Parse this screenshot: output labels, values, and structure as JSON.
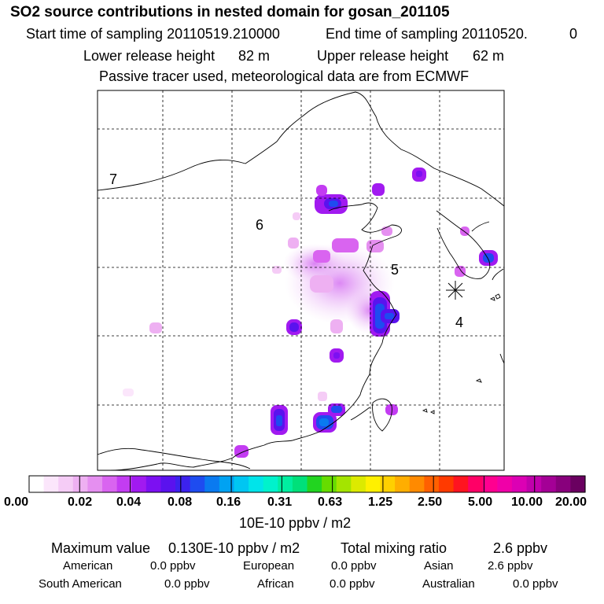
{
  "header": {
    "title": "SO2 source contributions in nested domain for gosan_201105",
    "start_label": "Start time of sampling 20110519.210000",
    "end_label": "End time of sampling 20110520.",
    "end_suffix": "0",
    "lower_label": "Lower release height",
    "lower_value": "82 m",
    "upper_label": "Upper release height",
    "upper_value": "62 m",
    "note": "Passive tracer used, meteorological data are from ECMWF"
  },
  "chart_data": {
    "type": "heatmap",
    "title": "SO2 source contributions in nested domain for gosan_201105",
    "colorbar": {
      "tick_labels": [
        "0.00",
        "0.02",
        "0.04",
        "0.08",
        "0.16",
        "0.31",
        "0.63",
        "1.25",
        "2.50",
        "5.00",
        "10.00",
        "20.00"
      ],
      "tick_values": [
        0.0,
        0.02,
        0.04,
        0.08,
        0.16,
        0.31,
        0.63,
        1.25,
        2.5,
        5.0,
        10.0,
        20.0
      ],
      "unit": "10E-10 ppbv / m2",
      "colors": [
        "#ffffff",
        "#fbe6fb",
        "#f5ccf6",
        "#eeb0f2",
        "#e58ff0",
        "#d964f0",
        "#c33cf2",
        "#a11af0",
        "#7c10f2",
        "#5a12ee",
        "#3c22ee",
        "#1e4cf0",
        "#0a7af0",
        "#00a2f2",
        "#00c6f2",
        "#00e4ea",
        "#00f2cc",
        "#00eea0",
        "#00e07a",
        "#22d420",
        "#66dc00",
        "#a4e400",
        "#dcea00",
        "#fff000",
        "#ffd000",
        "#ffae00",
        "#ff8a00",
        "#ff6000",
        "#ff3a00",
        "#ff1420",
        "#ff0066",
        "#ff0090",
        "#f000a8",
        "#dc00b4",
        "#c000ac",
        "#a40096",
        "#88007c",
        "#6a0060"
      ]
    },
    "region_labels": [
      "7",
      "6",
      "5",
      "4"
    ],
    "receptor": "gosan",
    "sources": [
      {
        "lon_rel": 0.59,
        "lat_rel": 0.23,
        "value": 0.06
      },
      {
        "lon_rel": 0.69,
        "lat_rel": 0.26,
        "value": 0.04
      },
      {
        "lon_rel": 0.79,
        "lat_rel": 0.22,
        "value": 0.05
      },
      {
        "lon_rel": 0.6,
        "lat_rel": 0.44,
        "value": 0.03
      },
      {
        "lon_rel": 0.7,
        "lat_rel": 0.58,
        "value": 0.13
      },
      {
        "lon_rel": 0.48,
        "lat_rel": 0.63,
        "value": 0.05
      },
      {
        "lon_rel": 0.58,
        "lat_rel": 0.72,
        "value": 0.04
      },
      {
        "lon_rel": 0.46,
        "lat_rel": 0.87,
        "value": 0.07
      },
      {
        "lon_rel": 0.57,
        "lat_rel": 0.88,
        "value": 0.08
      },
      {
        "lon_rel": 0.96,
        "lat_rel": 0.44,
        "value": 0.05
      },
      {
        "lon_rel": 0.36,
        "lat_rel": 0.96,
        "value": 0.03
      }
    ]
  },
  "stats": {
    "max_label": "Maximum value",
    "max_value": "0.130E-10 ppbv / m2",
    "total_label": "Total mixing ratio",
    "total_value": "2.6 ppbv",
    "american_label": "American",
    "american_value": "0.0 ppbv",
    "european_label": "European",
    "european_value": "0.0 ppbv",
    "asian_label": "Asian",
    "asian_value": "2.6 ppbv",
    "south_american_label": "South American",
    "south_american_value": "0.0 ppbv",
    "african_label": "African",
    "african_value": "0.0 ppbv",
    "australian_label": "Australian",
    "australian_value": "0.0 ppbv"
  }
}
